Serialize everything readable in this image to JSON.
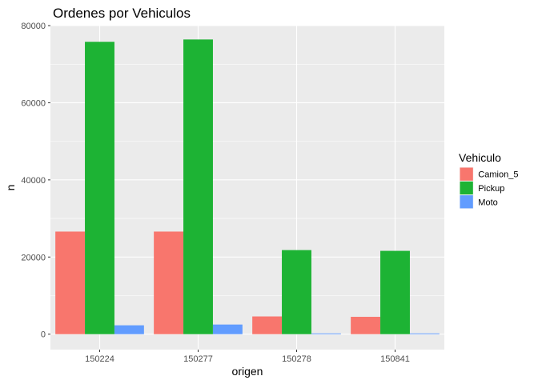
{
  "chart_data": {
    "type": "bar",
    "title": "Ordenes por Vehiculos",
    "xlabel": "origen",
    "ylabel": "n",
    "categories": [
      "150224",
      "150277",
      "150278",
      "150841"
    ],
    "series": [
      {
        "name": "Camion_5",
        "color": "#F8766D",
        "values": [
          26600,
          26600,
          4600,
          4500
        ]
      },
      {
        "name": "Pickup",
        "color": "#1DB334",
        "values": [
          75800,
          76400,
          21800,
          21600
        ]
      },
      {
        "name": "Moto",
        "color": "#619CFF",
        "values": [
          2300,
          2500,
          200,
          200
        ]
      }
    ],
    "ylim": [
      0,
      80000
    ],
    "yticks": [
      0,
      20000,
      40000,
      60000,
      80000
    ],
    "grid": true,
    "legend": {
      "title": "Vehiculo",
      "position": "right"
    }
  }
}
